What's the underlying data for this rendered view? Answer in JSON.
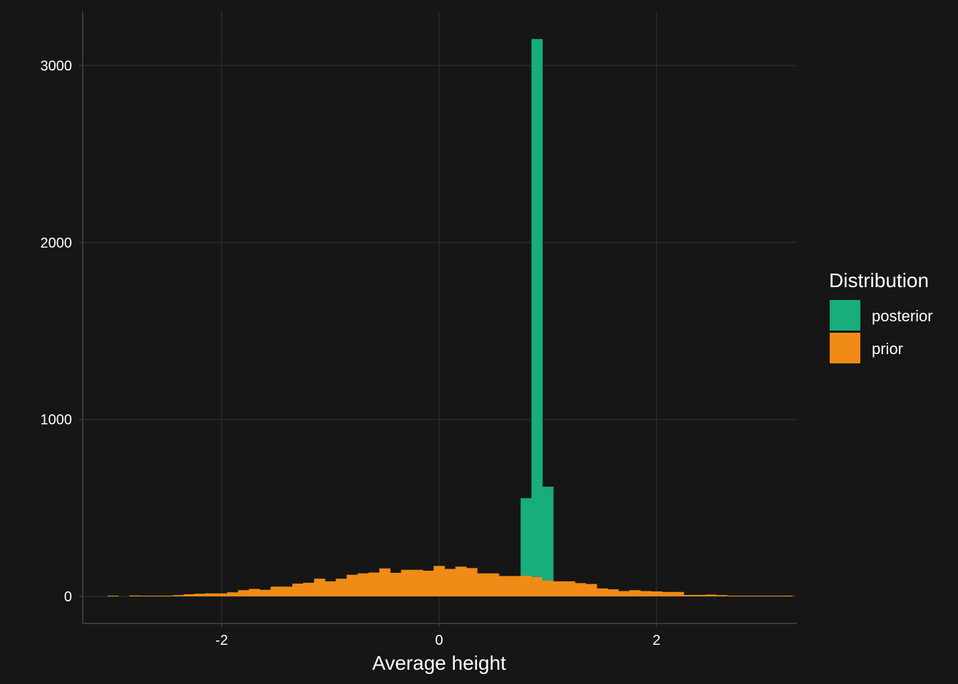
{
  "chart_data": {
    "type": "bar",
    "title": "",
    "xlabel": "Average height",
    "ylabel": "",
    "xlim": [
      -3.3,
      3.3
    ],
    "ylim": [
      -150,
      3300
    ],
    "x_ticks": [
      -2,
      0,
      2
    ],
    "x_tick_labels": [
      "-2",
      "0",
      "2"
    ],
    "y_ticks": [
      0,
      1000,
      2000,
      3000
    ],
    "y_tick_labels": [
      "0",
      "1000",
      "2000",
      "3000"
    ],
    "grid": true,
    "legend": {
      "title": "Distribution",
      "position": "right",
      "entries": [
        {
          "label": "posterior",
          "color": "#17AE7C"
        },
        {
          "label": "prior",
          "color": "#EF8B16"
        }
      ]
    },
    "colors": {
      "background": "#161616",
      "grid": "#2e2e2e",
      "axis": "#3a3a3a",
      "posterior": "#17AE7C",
      "prior": "#EF8B16"
    },
    "series": [
      {
        "name": "posterior",
        "bin_width": 0.1,
        "bins": [
          {
            "x0": 0.75,
            "x1": 0.85,
            "value": 555
          },
          {
            "x0": 0.85,
            "x1": 0.95,
            "value": 3150
          },
          {
            "x0": 0.95,
            "x1": 1.05,
            "value": 620
          }
        ]
      },
      {
        "name": "prior",
        "bin_width": 0.1,
        "bins": [
          {
            "x0": -3.05,
            "x1": -2.95,
            "value": 1
          },
          {
            "x0": -2.95,
            "x1": -2.85,
            "value": 0
          },
          {
            "x0": -2.85,
            "x1": -2.75,
            "value": 5
          },
          {
            "x0": -2.75,
            "x1": -2.65,
            "value": 2
          },
          {
            "x0": -2.65,
            "x1": -2.55,
            "value": 3
          },
          {
            "x0": -2.55,
            "x1": -2.45,
            "value": 4
          },
          {
            "x0": -2.45,
            "x1": -2.35,
            "value": 7
          },
          {
            "x0": -2.35,
            "x1": -2.25,
            "value": 12
          },
          {
            "x0": -2.25,
            "x1": -2.15,
            "value": 15
          },
          {
            "x0": -2.15,
            "x1": -2.05,
            "value": 17
          },
          {
            "x0": -2.05,
            "x1": -1.95,
            "value": 17
          },
          {
            "x0": -1.95,
            "x1": -1.85,
            "value": 23
          },
          {
            "x0": -1.85,
            "x1": -1.75,
            "value": 35
          },
          {
            "x0": -1.75,
            "x1": -1.65,
            "value": 42
          },
          {
            "x0": -1.65,
            "x1": -1.55,
            "value": 37
          },
          {
            "x0": -1.55,
            "x1": -1.45,
            "value": 55
          },
          {
            "x0": -1.45,
            "x1": -1.35,
            "value": 55
          },
          {
            "x0": -1.35,
            "x1": -1.25,
            "value": 72
          },
          {
            "x0": -1.25,
            "x1": -1.15,
            "value": 77
          },
          {
            "x0": -1.15,
            "x1": -1.05,
            "value": 100
          },
          {
            "x0": -1.05,
            "x1": -0.95,
            "value": 85
          },
          {
            "x0": -0.95,
            "x1": -0.85,
            "value": 100
          },
          {
            "x0": -0.85,
            "x1": -0.75,
            "value": 122
          },
          {
            "x0": -0.75,
            "x1": -0.65,
            "value": 130
          },
          {
            "x0": -0.65,
            "x1": -0.55,
            "value": 135
          },
          {
            "x0": -0.55,
            "x1": -0.45,
            "value": 158
          },
          {
            "x0": -0.45,
            "x1": -0.35,
            "value": 133
          },
          {
            "x0": -0.35,
            "x1": -0.25,
            "value": 150
          },
          {
            "x0": -0.25,
            "x1": -0.15,
            "value": 150
          },
          {
            "x0": -0.15,
            "x1": -0.05,
            "value": 145
          },
          {
            "x0": -0.05,
            "x1": 0.05,
            "value": 172
          },
          {
            "x0": 0.05,
            "x1": 0.15,
            "value": 155
          },
          {
            "x0": 0.15,
            "x1": 0.25,
            "value": 168
          },
          {
            "x0": 0.25,
            "x1": 0.35,
            "value": 160
          },
          {
            "x0": 0.35,
            "x1": 0.45,
            "value": 130
          },
          {
            "x0": 0.45,
            "x1": 0.55,
            "value": 130
          },
          {
            "x0": 0.55,
            "x1": 0.65,
            "value": 115
          },
          {
            "x0": 0.65,
            "x1": 0.75,
            "value": 115
          },
          {
            "x0": 0.75,
            "x1": 0.85,
            "value": 118
          },
          {
            "x0": 0.85,
            "x1": 0.95,
            "value": 110
          },
          {
            "x0": 0.95,
            "x1": 1.05,
            "value": 90
          },
          {
            "x0": 1.05,
            "x1": 1.15,
            "value": 85
          },
          {
            "x0": 1.15,
            "x1": 1.25,
            "value": 85
          },
          {
            "x0": 1.25,
            "x1": 1.35,
            "value": 75
          },
          {
            "x0": 1.35,
            "x1": 1.45,
            "value": 70
          },
          {
            "x0": 1.45,
            "x1": 1.55,
            "value": 45
          },
          {
            "x0": 1.55,
            "x1": 1.65,
            "value": 40
          },
          {
            "x0": 1.65,
            "x1": 1.75,
            "value": 30
          },
          {
            "x0": 1.75,
            "x1": 1.85,
            "value": 35
          },
          {
            "x0": 1.85,
            "x1": 1.95,
            "value": 30
          },
          {
            "x0": 1.95,
            "x1": 2.05,
            "value": 28
          },
          {
            "x0": 2.05,
            "x1": 2.15,
            "value": 25
          },
          {
            "x0": 2.15,
            "x1": 2.25,
            "value": 25
          },
          {
            "x0": 2.25,
            "x1": 2.35,
            "value": 8
          },
          {
            "x0": 2.35,
            "x1": 2.45,
            "value": 8
          },
          {
            "x0": 2.45,
            "x1": 2.55,
            "value": 10
          },
          {
            "x0": 2.55,
            "x1": 2.65,
            "value": 7
          },
          {
            "x0": 2.65,
            "x1": 2.75,
            "value": 4
          },
          {
            "x0": 2.75,
            "x1": 2.85,
            "value": 2
          },
          {
            "x0": 2.85,
            "x1": 2.95,
            "value": 2
          },
          {
            "x0": 2.95,
            "x1": 3.05,
            "value": 1
          },
          {
            "x0": 3.05,
            "x1": 3.15,
            "value": 1
          },
          {
            "x0": 3.15,
            "x1": 3.25,
            "value": 3
          }
        ]
      }
    ]
  }
}
